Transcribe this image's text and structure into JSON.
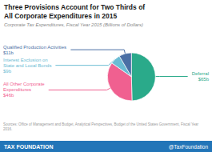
{
  "chart_data": {
    "type": "pie",
    "title": "Three Provisions Account for Two Thirds of\nAll Corporate Expenditures in 2015",
    "subtitle": "Corporate Tax Expenditures, Fiscal Year 2015 (Billions of Dollars)",
    "categories": [
      "Deferral",
      "All Other Corporate\nExpenditures",
      "Interest Exclusion on\nState and Local Bonds",
      "Qualified Production Activities"
    ],
    "values": [
      65,
      46,
      9,
      11
    ],
    "value_labels": [
      "$65b",
      "$46b",
      "$9b",
      "$11b"
    ],
    "colors": [
      "#2aaa8a",
      "#f06090",
      "#6bbcd4",
      "#4a6fa5"
    ],
    "data_labels": true,
    "annotations": [
      "Sources: Office of Management and Budget, Analytical Perspectives, Budget of the United States Government, Fiscal Year 2016.",
      "TAX FOUNDATION",
      "@TaxFoundation"
    ]
  }
}
